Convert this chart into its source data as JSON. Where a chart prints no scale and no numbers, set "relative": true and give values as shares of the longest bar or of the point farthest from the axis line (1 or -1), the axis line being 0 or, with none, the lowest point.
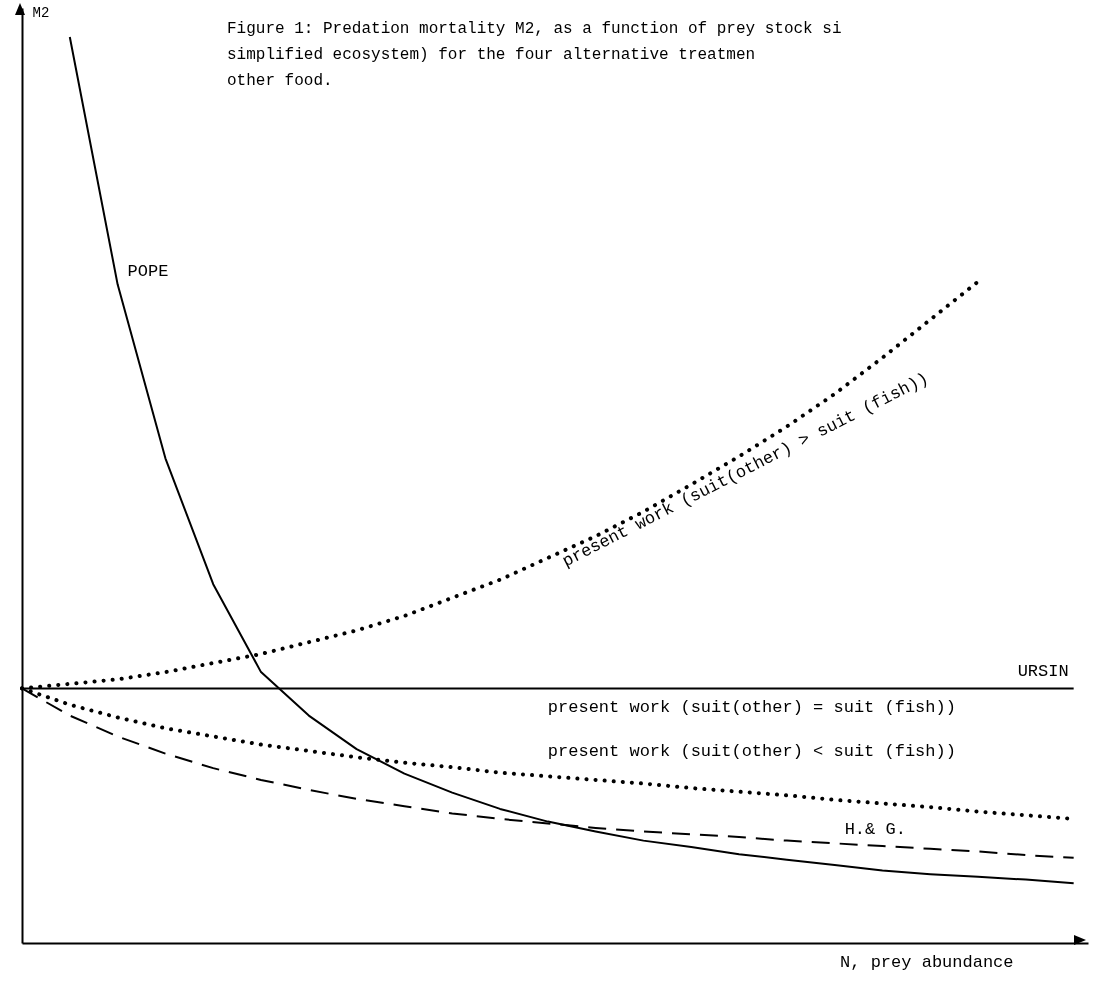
{
  "chart_data": {
    "type": "line",
    "relative": true,
    "title": "Figure 1: Predation mortality M2, as a function of prey stock si\nsimplified ecosystem) for the four alternative treatmen\nother food.",
    "xlabel": "N, prey abundance",
    "ylabel": "M2",
    "categories": [
      null,
      null,
      null,
      null,
      null,
      null,
      null,
      null,
      null,
      null,
      null,
      null,
      null,
      null,
      null,
      null,
      null,
      null,
      null,
      null,
      null,
      null,
      null
    ],
    "series": [
      {
        "name": "POPE",
        "color": "#000000",
        "line_style": "solid",
        "values": [
          null,
          1.0,
          0.727,
          0.535,
          0.396,
          0.299,
          0.251,
          0.214,
          0.187,
          0.166,
          0.148,
          0.134,
          0.123,
          0.113,
          0.106,
          0.098,
          0.092,
          0.086,
          0.08,
          0.076,
          0.073,
          0.07,
          0.066
        ]
      },
      {
        "name": "URSIN",
        "color": "#000000",
        "line_style": "solid",
        "values": [
          0.281,
          0.281,
          0.281,
          0.281,
          0.281,
          0.281,
          0.281,
          0.281,
          0.281,
          0.281,
          0.281,
          0.281,
          0.281,
          0.281,
          0.281,
          0.281,
          0.281,
          0.281,
          0.281,
          0.281,
          0.281,
          0.281,
          0.281
        ]
      },
      {
        "name": "present work (suit(other) > suit (fish))",
        "color": "#000000",
        "line_style": "dotted",
        "values": [
          0.281,
          0.286,
          0.291,
          0.299,
          0.309,
          0.319,
          0.332,
          0.345,
          0.361,
          0.381,
          0.401,
          0.425,
          0.449,
          0.476,
          0.506,
          0.537,
          0.57,
          0.606,
          0.646,
          0.688,
          0.73,
          null,
          null
        ]
      },
      {
        "name": "present work (suit(other) < suit (fish))",
        "color": "#000000",
        "line_style": "dotted",
        "values": [
          0.281,
          0.263,
          0.249,
          0.237,
          0.228,
          0.219,
          0.212,
          0.205,
          0.199,
          0.194,
          0.188,
          0.184,
          0.18,
          0.176,
          0.171,
          0.167,
          0.163,
          0.158,
          0.154,
          0.15,
          0.145,
          0.141,
          0.137
        ]
      },
      {
        "name": "H.& G.",
        "color": "#000000",
        "line_style": "dashed",
        "values": [
          0.281,
          0.251,
          0.228,
          0.209,
          0.193,
          0.18,
          0.169,
          0.159,
          0.151,
          0.143,
          0.137,
          0.132,
          0.127,
          0.123,
          0.12,
          0.117,
          0.113,
          0.11,
          0.107,
          0.104,
          0.101,
          0.097,
          0.094
        ]
      }
    ],
    "annotations": [
      {
        "text": "present work (suit(other) = suit (fish))",
        "y": 0.281
      }
    ]
  }
}
